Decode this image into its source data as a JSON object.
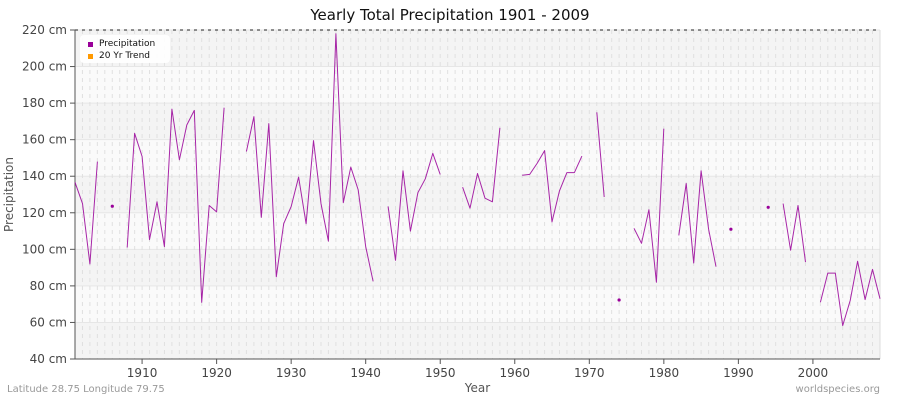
{
  "title": "Yearly Total Precipitation 1901 - 2009",
  "footer": {
    "left": "Latitude 28.75 Longitude 79.75",
    "right": "worldspecies.org"
  },
  "legend": {
    "items": [
      {
        "label": "Precipitation",
        "color": "#990099"
      },
      {
        "label": "20 Yr Trend",
        "color": "#ff9900"
      }
    ]
  },
  "axes": {
    "xlabel": "Year",
    "ylabel": "Precipitation",
    "yticks": [
      "40 cm",
      "60 cm",
      "80 cm",
      "100 cm",
      "120 cm",
      "140 cm",
      "160 cm",
      "180 cm",
      "200 cm",
      "220 cm"
    ],
    "xticks": [
      "1910",
      "1920",
      "1930",
      "1940",
      "1950",
      "1960",
      "1970",
      "1980",
      "1990",
      "2000"
    ]
  },
  "chart_data": {
    "type": "line",
    "title": "Yearly Total Precipitation 1901 - 2009",
    "xlabel": "Year",
    "ylabel": "Precipitation",
    "ylim": [
      40,
      220
    ],
    "xlim": [
      1901,
      2009
    ],
    "y_unit": "cm",
    "grid": true,
    "legend_position": "top-left",
    "legend": [
      "Precipitation",
      "20 Yr Trend"
    ],
    "x_start": 1901,
    "series": [
      {
        "name": "Precipitation",
        "color": "#990099",
        "values": [
          136.7,
          125,
          92,
          148,
          null,
          123.6,
          null,
          101,
          163.5,
          150.8,
          105.3,
          126,
          101.5,
          176.7,
          149,
          168,
          176,
          71,
          124,
          120.5,
          177.5,
          null,
          null,
          153.5,
          172.6,
          117.5,
          168.8,
          85,
          114,
          123.5,
          139.5,
          114,
          159.5,
          125,
          104.5,
          218,
          125.5,
          145,
          132.5,
          101.5,
          82.5,
          null,
          123.5,
          94,
          143,
          110,
          131,
          138.6,
          152.5,
          141,
          null,
          null,
          134,
          122.5,
          141.5,
          128,
          126,
          166.5,
          null,
          null,
          140.5,
          141,
          147,
          154,
          115,
          132,
          142,
          142,
          151,
          null,
          175,
          128.6,
          null,
          72.3,
          null,
          111.5,
          103.3,
          121.7,
          82,
          166,
          null,
          107.6,
          136,
          92.5,
          143,
          111,
          90.5,
          null,
          111,
          null,
          null,
          null,
          null,
          123,
          null,
          125,
          99.5,
          124,
          93,
          null,
          71,
          87,
          87,
          58.3,
          72,
          93.5,
          72.5,
          89,
          73
        ]
      },
      {
        "name": "20 Yr Trend",
        "color": "#ff9900",
        "values": []
      }
    ]
  }
}
